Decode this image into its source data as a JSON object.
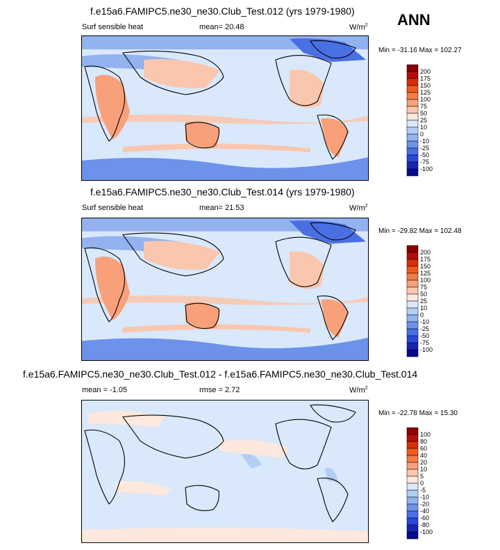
{
  "season": "ANN",
  "panels": [
    {
      "title": "f.e15a6.FAMIPC5.ne30_ne30.Club_Test.012 (yrs 1979-1980)",
      "left_label": "Surf sensible heat",
      "mid_label": "mean=  20.48",
      "units": "W/m",
      "units_sup": "2",
      "minmax": "Min = -31.16 Max = 102.27",
      "colorbar": {
        "colors": [
          "#8b0000",
          "#b30d0d",
          "#d62f0b",
          "#ef5a1f",
          "#f47c45",
          "#f7a07a",
          "#fac6ae",
          "#fce8dc",
          "#d9e8fa",
          "#b4cdf5",
          "#92b2f0",
          "#6d92ea",
          "#4a6fe3",
          "#2a48d6",
          "#1626b2",
          "#060a8c"
        ],
        "labels": [
          "200",
          "175",
          "150",
          "125",
          "100",
          "75",
          "50",
          "25",
          "10",
          "0",
          "-10",
          "-25",
          "-50",
          "-75",
          "-100"
        ]
      }
    },
    {
      "title": "f.e15a6.FAMIPC5.ne30_ne30.Club_Test.014 (yrs 1979-1980)",
      "left_label": "Surf sensible heat",
      "mid_label": "mean=  21.53",
      "units": "W/m",
      "units_sup": "2",
      "minmax": "Min = -29.82 Max = 102.48",
      "colorbar": {
        "colors": [
          "#8b0000",
          "#b30d0d",
          "#d62f0b",
          "#ef5a1f",
          "#f47c45",
          "#f7a07a",
          "#fac6ae",
          "#fce8dc",
          "#d9e8fa",
          "#b4cdf5",
          "#92b2f0",
          "#6d92ea",
          "#4a6fe3",
          "#2a48d6",
          "#1626b2",
          "#060a8c"
        ],
        "labels": [
          "200",
          "175",
          "150",
          "125",
          "100",
          "75",
          "50",
          "25",
          "10",
          "0",
          "-10",
          "-25",
          "-50",
          "-75",
          "-100"
        ]
      }
    },
    {
      "title": "f.e15a6.FAMIPC5.ne30_ne30.Club_Test.012 - f.e15a6.FAMIPC5.ne30_ne30.Club_Test.014",
      "left_label": "mean =  -1.05",
      "mid_label": "rmse =   2.72",
      "units": "W/m",
      "units_sup": "2",
      "minmax": "Min = -22.78 Max =  15.30",
      "colorbar": {
        "colors": [
          "#8b0000",
          "#b30d0d",
          "#d62f0b",
          "#ef5a1f",
          "#f47c45",
          "#f7a07a",
          "#fac6ae",
          "#fce8dc",
          "#d9e8fa",
          "#b4cdf5",
          "#92b2f0",
          "#6d92ea",
          "#4a6fe3",
          "#2a48d6",
          "#1626b2",
          "#060a8c"
        ],
        "labels": [
          "100",
          "80",
          "60",
          "40",
          "20",
          "10",
          "5",
          "0",
          "-5",
          "-10",
          "-20",
          "-40",
          "-60",
          "-80",
          "-100"
        ]
      }
    }
  ],
  "chart_data": [
    {
      "type": "heatmap",
      "title": "f.e15a6.FAMIPC5.ne30_ne30.Club_Test.012 (yrs 1979-1980)",
      "variable": "Surf sensible heat",
      "mean": 20.48,
      "min": -31.16,
      "max": 102.27,
      "units": "W/m2",
      "levels": [
        -100,
        -75,
        -50,
        -25,
        -10,
        0,
        10,
        25,
        50,
        75,
        100,
        125,
        150,
        175,
        200
      ]
    },
    {
      "type": "heatmap",
      "title": "f.e15a6.FAMIPC5.ne30_ne30.Club_Test.014 (yrs 1979-1980)",
      "variable": "Surf sensible heat",
      "mean": 21.53,
      "min": -29.82,
      "max": 102.48,
      "units": "W/m2",
      "levels": [
        -100,
        -75,
        -50,
        -25,
        -10,
        0,
        10,
        25,
        50,
        75,
        100,
        125,
        150,
        175,
        200
      ]
    },
    {
      "type": "heatmap",
      "title": "f.e15a6.FAMIPC5.ne30_ne30.Club_Test.012 - f.e15a6.FAMIPC5.ne30_ne30.Club_Test.014",
      "mean": -1.05,
      "rmse": 2.72,
      "min": -22.78,
      "max": 15.3,
      "units": "W/m2",
      "levels": [
        -100,
        -80,
        -60,
        -40,
        -20,
        -10,
        -5,
        0,
        5,
        10,
        20,
        40,
        60,
        80,
        100
      ]
    }
  ]
}
